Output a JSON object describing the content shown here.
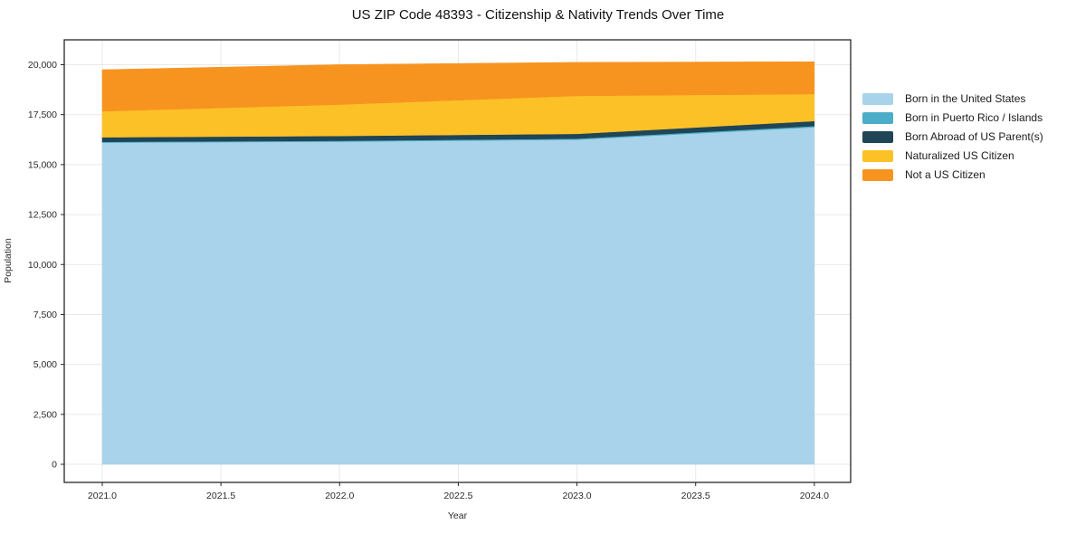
{
  "figure": {
    "title": "US ZIP Code 48393 - Citizenship & Nativity Trends Over Time"
  },
  "chart_data": {
    "type": "area",
    "stacked": true,
    "title": "US ZIP Code 48393 - Citizenship & Nativity Trends Over Time",
    "xlabel": "Year",
    "ylabel": "Population",
    "x": [
      2021,
      2022,
      2023,
      2024
    ],
    "series": [
      {
        "name": "Born in the United States",
        "color": "#a8d3ea",
        "values": [
          16100,
          16150,
          16250,
          16870
        ]
      },
      {
        "name": "Born in Puerto Rico / Islands",
        "color": "#4badc7",
        "values": [
          40,
          45,
          50,
          60
        ]
      },
      {
        "name": "Born Abroad of US Parent(s)",
        "color": "#1f4557",
        "values": [
          230,
          240,
          240,
          250
        ]
      },
      {
        "name": "Naturalized US Citizen",
        "color": "#fcc127",
        "values": [
          1300,
          1570,
          1900,
          1350
        ]
      },
      {
        "name": "Not a US Citizen",
        "color": "#f7941f",
        "values": [
          2080,
          2000,
          1680,
          1620
        ]
      }
    ],
    "totals": [
      19750,
      20005,
      20120,
      20150
    ],
    "x_ticks": [
      2021.0,
      2021.5,
      2022.0,
      2022.5,
      2023.0,
      2023.5,
      2024.0
    ],
    "x_tick_labels": [
      "2021.0",
      "2021.5",
      "2022.0",
      "2022.5",
      "2023.0",
      "2023.5",
      "2024.0"
    ],
    "y_ticks": [
      0,
      2500,
      5000,
      7500,
      10000,
      12500,
      15000,
      17500,
      20000
    ],
    "y_tick_labels": [
      "0",
      "2,500",
      "5,000",
      "7,500",
      "10,000",
      "12,500",
      "15,000",
      "17,500",
      "20,000"
    ],
    "xlim": [
      2020.84,
      2024.153
    ],
    "ylim": [
      -906,
      21246
    ],
    "grid": true,
    "legend_position": "right",
    "colors": {
      "spine": "#262626",
      "grid": "#e9e9e9",
      "background": "#ffffff"
    }
  }
}
